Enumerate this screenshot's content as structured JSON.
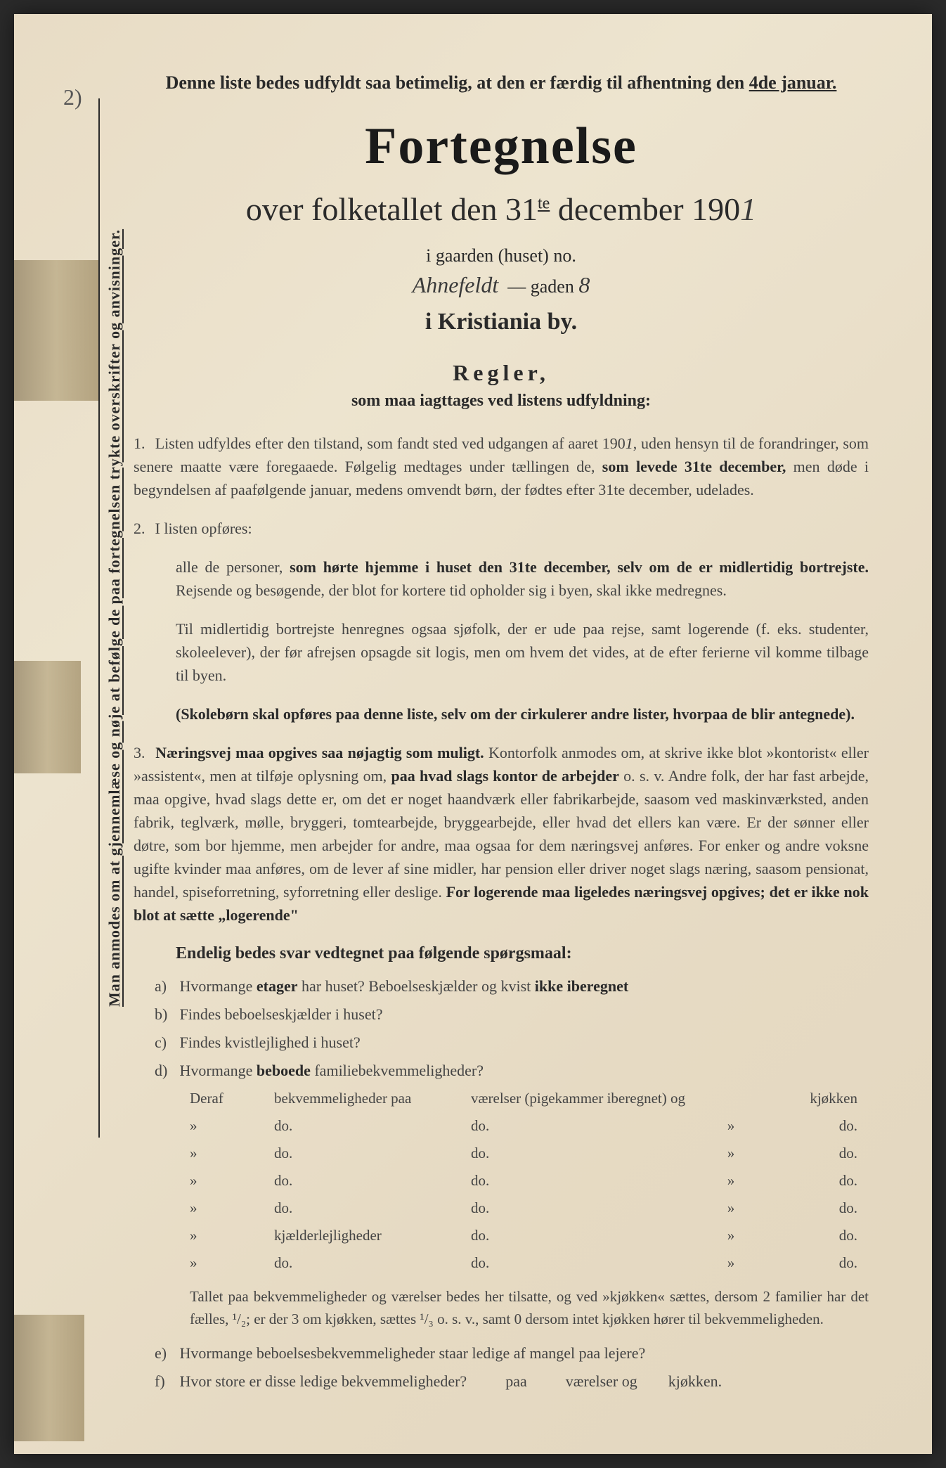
{
  "page_number": "2)",
  "side_text": "Man anmodes om at gjennemlæse og nøje at befølge de paa fortegnelsen trykte overskrifter og anvisninger.",
  "top_instruction": "Denne liste bedes udfyldt saa betimelig, at den er færdig til afhentning den ",
  "top_instruction_date": "4de januar.",
  "main_title": "Fortegnelse",
  "subtitle_pre": "over folketallet den 31",
  "subtitle_sup": "te",
  "subtitle_post": " december 190",
  "year_handwritten": "1",
  "gaard_label": "i gaarden (huset) no.",
  "address_handwritten": "Ahnefeldt",
  "gade_label": "— gaden",
  "gade_number": "8",
  "city_line": "i Kristiania by.",
  "rules_title": "Regler,",
  "rules_subtitle": "som maa iagttages ved listens udfyldning:",
  "rule1": {
    "num": "1.",
    "text_a": "Listen udfyldes efter den tilstand, som fandt sted ved udgangen af aaret 190",
    "year": "1",
    "text_b": ", uden hensyn til de forandringer, som senere maatte være foregaaede. Følgelig medtages under tællingen de, ",
    "bold1": "som levede 31te december,",
    "text_c": " men døde i begyndelsen af paafølgende januar, medens omvendt børn, der fødtes efter 31te december, udelades."
  },
  "rule2": {
    "num": "2.",
    "intro": "I listen opføres:",
    "text_a": "alle de personer, ",
    "bold1": "som hørte hjemme i huset den 31te december, selv om de er midlertidig bortrejste.",
    "text_b": " Rejsende og besøgende, der blot for kortere tid opholder sig i byen, skal ikke medregnes.",
    "para2": "Til midlertidig bortrejste henregnes ogsaa sjøfolk, der er ude paa rejse, samt logerende (f. eks. studenter, skoleelever), der før afrejsen opsagde sit logis, men om hvem det vides, at de efter ferierne vil komme tilbage til byen."
  },
  "skole_note": "(Skolebørn skal opføres paa denne liste, selv om der cirkulerer andre lister, hvorpaa de blir antegnede).",
  "rule3": {
    "num": "3.",
    "bold1": "Næringsvej maa opgives saa nøjagtig som muligt.",
    "text_a": " Kontorfolk anmodes om, at skrive ikke blot »kontorist« eller »assistent«, men at tilføje oplysning om, ",
    "bold2": "paa hvad slags kontor de arbejder",
    "text_b": " o. s. v. Andre folk, der har fast arbejde, maa opgive, hvad slags dette er, om det er noget haandværk eller fabrikarbejde, saasom ved maskinværksted, anden fabrik, teglværk, mølle, bryggeri, tomtearbejde, bryggearbejde, eller hvad det ellers kan være. Er der sønner eller døtre, som bor hjemme, men arbejder for andre, maa ogsaa for dem næringsvej anføres. For enker og andre voksne ugifte kvinder maa anføres, om de lever af sine midler, har pension eller driver noget slags næring, saasom pensionat, handel, spiseforretning, syforretning eller deslige. ",
    "bold3": "For logerende maa ligeledes næringsvej opgives; det er ikke nok blot at sætte „logerende\""
  },
  "endelig": "Endelig bedes svar vedtegnet paa følgende spørgsmaal:",
  "questions": {
    "a": {
      "letter": "a)",
      "text_a": "Hvormange ",
      "bold": "etager",
      "text_b": " har huset? Beboelseskjælder og kvist ",
      "bold2": "ikke iberegnet"
    },
    "b": {
      "letter": "b)",
      "text": "Findes beboelseskjælder i huset?"
    },
    "c": {
      "letter": "c)",
      "text": "Findes kvistlejlighed i huset?"
    },
    "d": {
      "letter": "d)",
      "text_a": "Hvormange ",
      "bold": "beboede",
      "text_b": " familiebekvemmeligheder?"
    }
  },
  "table": {
    "header": {
      "col1": "Deraf",
      "col2": "bekvemmeligheder paa",
      "col3": "værelser (pigekammer iberegnet) og",
      "col5": "kjøkken"
    },
    "rows": [
      {
        "col1": "»",
        "col2": "do.",
        "col3": "do.",
        "col4": "»",
        "col5": "do."
      },
      {
        "col1": "»",
        "col2": "do.",
        "col3": "do.",
        "col4": "»",
        "col5": "do."
      },
      {
        "col1": "»",
        "col2": "do.",
        "col3": "do.",
        "col4": "»",
        "col5": "do."
      },
      {
        "col1": "»",
        "col2": "do.",
        "col3": "do.",
        "col4": "»",
        "col5": "do."
      },
      {
        "col1": "»",
        "col2": "kjælderlejligheder",
        "col3": "do.",
        "col4": "»",
        "col5": "do."
      },
      {
        "col1": "»",
        "col2": "do.",
        "col3": "do.",
        "col4": "»",
        "col5": "do."
      }
    ]
  },
  "footer_note": "Tallet paa bekvemmeligheder og værelser bedes her tilsatte, og ved »kjøkken« sættes, dersom 2 familier har det fælles, ¹/₂; er der 3 om kjøkken, sættes ¹/₃ o. s. v., samt 0 dersom intet kjøkken hører til bekvemmeligheden.",
  "question_e": {
    "letter": "e)",
    "text": "Hvormange beboelsesbekvemmeligheder staar ledige af mangel paa lejere?"
  },
  "question_f": {
    "letter": "f)",
    "text_a": "Hvor store er disse ledige bekvemmeligheder?",
    "text_b": "paa",
    "text_c": "værelser og",
    "text_d": "kjøkken."
  },
  "colors": {
    "paper_bg": "#e8dcc5",
    "text_dark": "#2a2a2a",
    "text_body": "#444444",
    "tape": "#9b8860"
  }
}
